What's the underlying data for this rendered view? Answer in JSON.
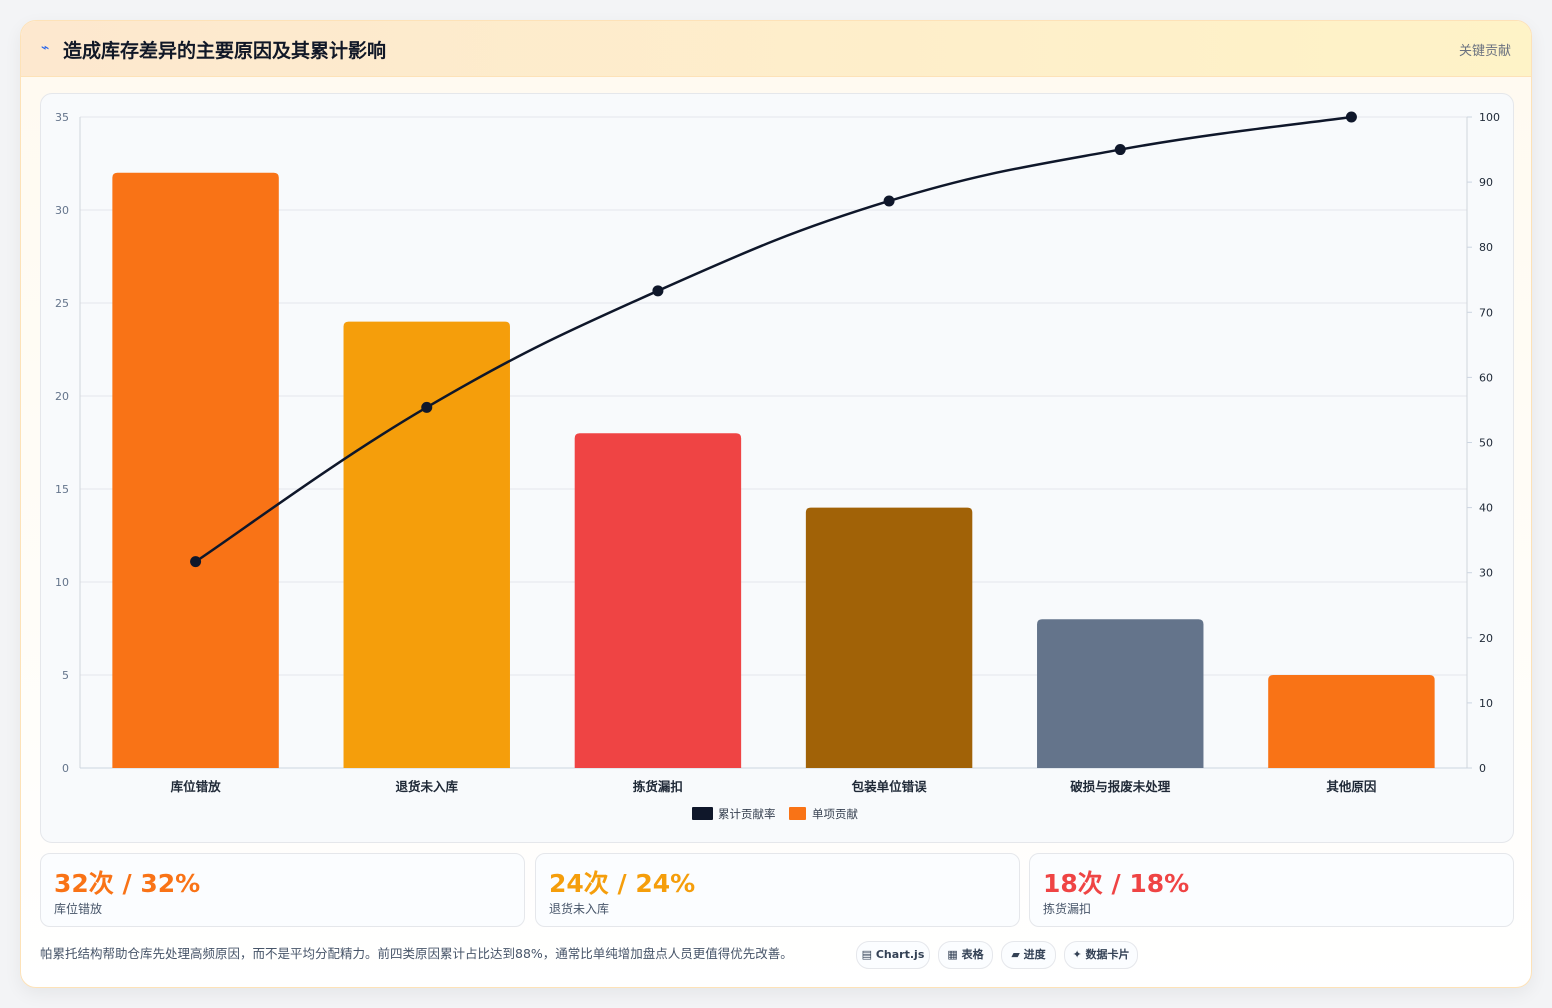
{
  "header": {
    "icon": "lightning-icon",
    "title": "造成库存差异的主要原因及其累计影响",
    "tag": "关键贡献"
  },
  "chart_data": {
    "type": "bar",
    "categories": [
      "库位错放",
      "退货未入库",
      "拣货漏扣",
      "包装单位错误",
      "破损与报废未处理",
      "其他原因"
    ],
    "series": [
      {
        "name": "单项贡献",
        "type": "bar",
        "axis": "left",
        "values": [
          32,
          24,
          18,
          14,
          8,
          5
        ],
        "colors": [
          "#f97316",
          "#f59e0b",
          "#ef4444",
          "#a16207",
          "#64748b",
          "#f97316"
        ]
      },
      {
        "name": "累计贡献率",
        "type": "line",
        "axis": "right",
        "values": [
          31.7,
          55.4,
          73.3,
          87.1,
          95.0,
          100
        ],
        "color": "#0f172a"
      }
    ],
    "ylim_left": [
      0,
      35
    ],
    "yticks_left": [
      0,
      5,
      10,
      15,
      20,
      25,
      30,
      35
    ],
    "ylim_right": [
      0,
      100
    ],
    "yticks_right": [
      0,
      10,
      20,
      30,
      40,
      50,
      60,
      70,
      80,
      90,
      100
    ],
    "legend": {
      "placement": "bottom",
      "items": [
        {
          "label": "累计贡献率",
          "color": "#0f172a"
        },
        {
          "label": "单项贡献",
          "color": "#f97316"
        }
      ]
    },
    "grid": true
  },
  "stats": [
    {
      "value": "32次 / 32%",
      "label": "库位错放",
      "color": "#f97316"
    },
    {
      "value": "24次 / 24%",
      "label": "退货未入库",
      "color": "#f59e0b"
    },
    {
      "value": "18次 / 18%",
      "label": "拣货漏扣",
      "color": "#ef4444"
    }
  ],
  "footer": {
    "note": "帕累托结构帮助仓库先处理高频原因，而不是平均分配精力。前四类原因累计占比达到88%，通常比单纯增加盘点人员更值得优先改善。",
    "chips": [
      {
        "icon": "chart-icon",
        "glyph": "▤",
        "label": "Chart.js"
      },
      {
        "icon": "table-icon",
        "glyph": "▦",
        "label": "表格"
      },
      {
        "icon": "progress-icon",
        "glyph": "▰",
        "label": "进度"
      },
      {
        "icon": "sparkle-icon",
        "glyph": "✦",
        "label": "数据卡片"
      }
    ]
  }
}
